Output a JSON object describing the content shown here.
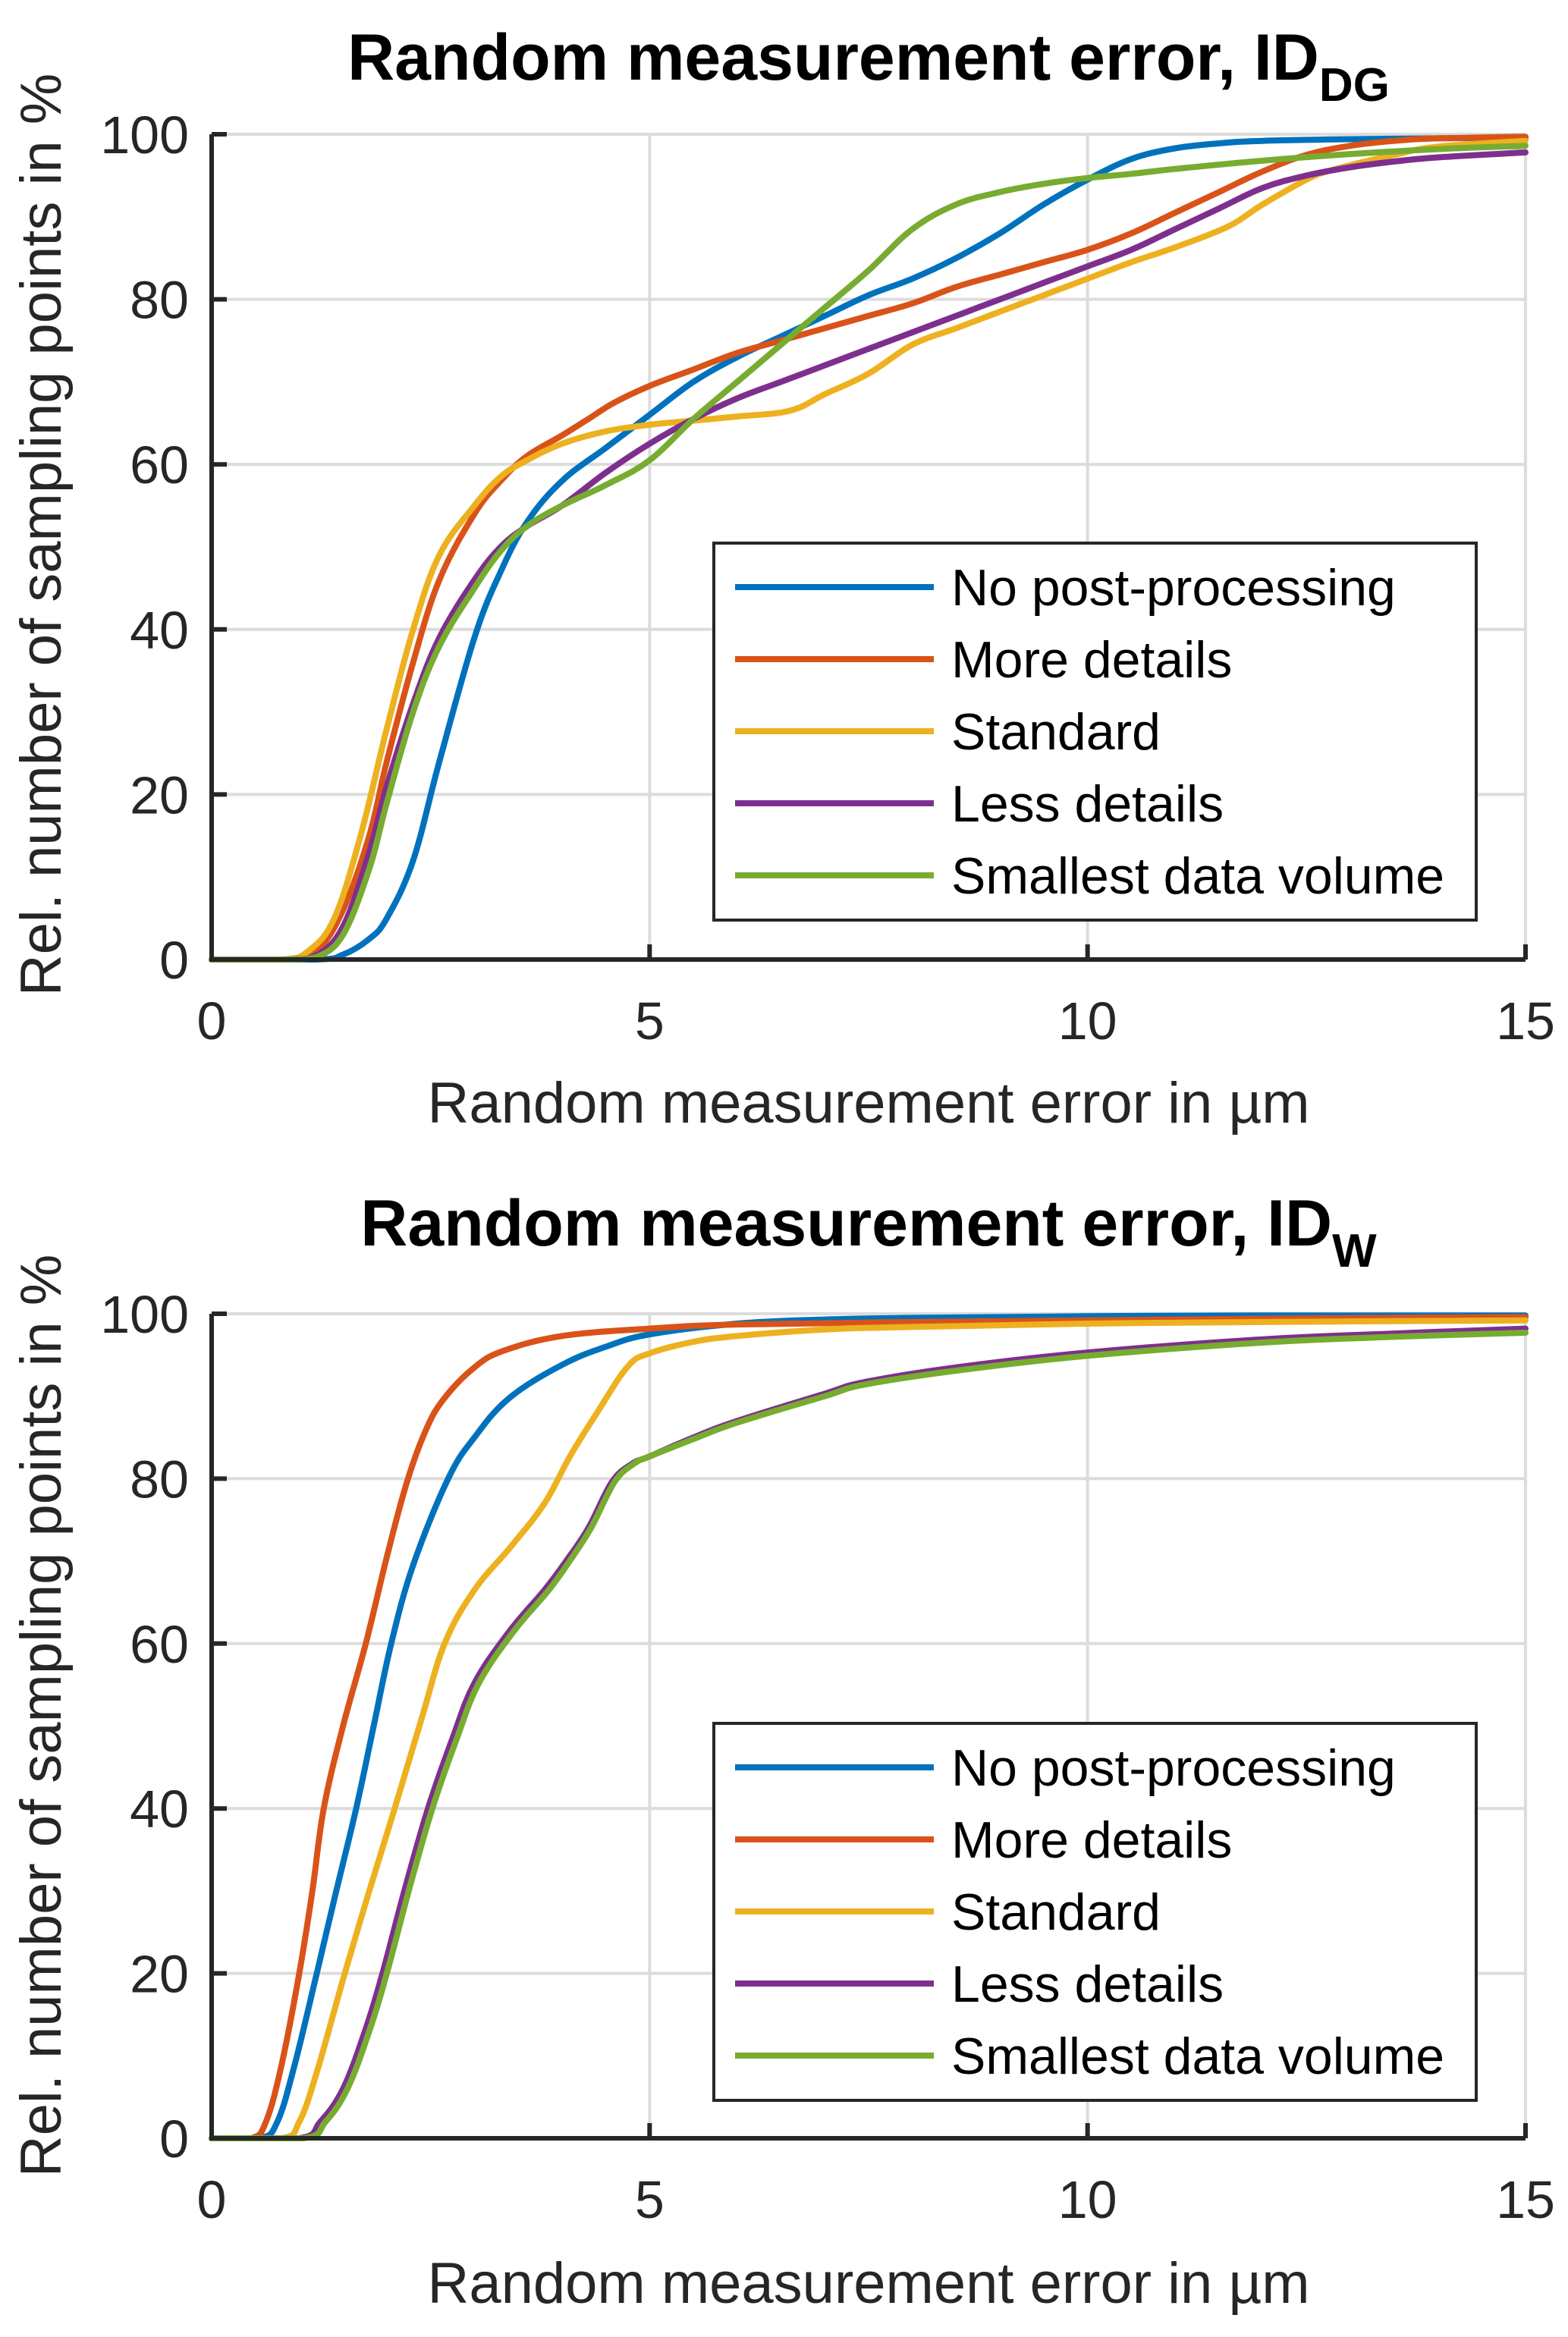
{
  "colors": {
    "no_post_processing": "#0072BD",
    "more_details": "#D95319",
    "standard": "#EDB120",
    "less_details": "#7E2F8E",
    "smallest_data_volume": "#77AC30",
    "axis": "#262626",
    "grid": "#dcdcdc"
  },
  "chart_data": [
    {
      "type": "line",
      "title": "Random measurement error, ID",
      "title_subscript": "DG",
      "xlabel": "Random measurement error in µm",
      "ylabel": "Rel. number of sampling points in %",
      "xlim": [
        0,
        15
      ],
      "ylim": [
        0,
        100
      ],
      "xticks": [
        "0",
        "5",
        "10",
        "15"
      ],
      "yticks": [
        "0",
        "20",
        "40",
        "60",
        "80",
        "100"
      ],
      "xtick_values": [
        0,
        5,
        10,
        15
      ],
      "ytick_values": [
        0,
        20,
        40,
        60,
        80,
        100
      ],
      "grid": true,
      "legend_position": "lower-right",
      "series": [
        {
          "name": "No post-processing",
          "color_key": "no_post_processing",
          "x": [
            0,
            1.2,
            1.5,
            1.8,
            2.0,
            2.3,
            2.6,
            3.0,
            3.3,
            3.6,
            4.0,
            4.5,
            5.0,
            5.5,
            6.0,
            6.5,
            7.0,
            7.5,
            8.0,
            8.5,
            9.0,
            9.5,
            10.0,
            10.5,
            11.0,
            11.5,
            12.0,
            13.0,
            14.0,
            15.0
          ],
          "y": [
            0,
            0,
            0.6,
            2.5,
            5,
            12,
            24,
            39,
            47,
            53,
            58,
            62,
            66,
            70,
            73,
            75.5,
            78,
            80.5,
            82.5,
            85,
            88,
            91.5,
            94.5,
            97,
            98.3,
            98.9,
            99.2,
            99.4,
            99.5,
            99.6
          ]
        },
        {
          "name": "More details",
          "color_key": "more_details",
          "x": [
            0,
            0.9,
            1.2,
            1.5,
            1.8,
            2.0,
            2.3,
            2.6,
            3.0,
            3.3,
            3.6,
            4.0,
            4.3,
            4.6,
            5.0,
            5.5,
            6.0,
            6.5,
            7.0,
            7.5,
            8.0,
            8.5,
            9.0,
            9.5,
            10.0,
            10.5,
            11.0,
            11.5,
            12.0,
            12.5,
            13.0,
            13.5,
            14.0,
            15.0
          ],
          "y": [
            0,
            0,
            1,
            6,
            15,
            24,
            36,
            46,
            54,
            58,
            61,
            63.5,
            65.5,
            67.5,
            69.5,
            71.5,
            73.5,
            75,
            76.5,
            78,
            79.5,
            81.5,
            83,
            84.5,
            86,
            88,
            90.5,
            93,
            95.5,
            97.5,
            98.6,
            99.2,
            99.5,
            99.7
          ]
        },
        {
          "name": "Standard",
          "color_key": "standard",
          "x": [
            0,
            0.8,
            1.1,
            1.4,
            1.7,
            2.0,
            2.3,
            2.6,
            3.0,
            3.3,
            3.6,
            4.0,
            4.5,
            5.0,
            5.5,
            6.0,
            6.6,
            7.0,
            7.5,
            8.0,
            8.5,
            9.0,
            9.5,
            10.0,
            10.5,
            11.0,
            11.6,
            12.0,
            12.5,
            12.8,
            13.5,
            14.0,
            15.0
          ],
          "y": [
            0,
            0,
            1,
            5,
            15,
            28,
            40,
            49,
            55,
            58.5,
            60.5,
            62.5,
            64,
            64.8,
            65.3,
            65.8,
            66.5,
            68.5,
            71,
            74.5,
            76.5,
            78.5,
            80.5,
            82.5,
            84.5,
            86.3,
            88.8,
            91.5,
            94.5,
            95.7,
            97.5,
            98.5,
            99.2
          ]
        },
        {
          "name": "Less details",
          "color_key": "less_details",
          "x": [
            0,
            0.9,
            1.2,
            1.5,
            1.8,
            2.0,
            2.3,
            2.6,
            3.0,
            3.3,
            3.6,
            4.0,
            4.5,
            5.0,
            5.5,
            6.0,
            6.5,
            7.0,
            7.5,
            8.0,
            8.5,
            9.0,
            9.5,
            10.0,
            10.5,
            11.0,
            11.5,
            12.0,
            12.5,
            13.0,
            13.5,
            14.0,
            15.0
          ],
          "y": [
            0,
            0,
            0.5,
            4,
            13,
            21,
            31,
            39,
            46,
            50,
            52.5,
            55,
            59,
            62.5,
            65.5,
            68,
            70,
            72,
            74,
            76,
            78,
            80,
            82,
            84,
            86,
            88.5,
            91,
            93.5,
            95,
            96,
            96.7,
            97.2,
            97.8
          ]
        },
        {
          "name": "Smallest data volume",
          "color_key": "smallest_data_volume",
          "x": [
            0,
            0.9,
            1.2,
            1.5,
            1.8,
            2.0,
            2.3,
            2.6,
            3.0,
            3.3,
            3.6,
            4.0,
            4.5,
            5.0,
            5.5,
            6.0,
            6.5,
            7.0,
            7.5,
            8.0,
            8.5,
            9.0,
            9.5,
            10.0,
            10.5,
            11.0,
            12.0,
            13.0,
            14.0,
            15.0
          ],
          "y": [
            0,
            0,
            0.3,
            3,
            11,
            19,
            30,
            38,
            45,
            49.5,
            52.5,
            55,
            57.5,
            60.5,
            65.5,
            70,
            74.5,
            79,
            83.5,
            88.5,
            91.5,
            93,
            94,
            94.7,
            95.2,
            95.8,
            96.8,
            97.6,
            98.2,
            98.6
          ]
        }
      ]
    },
    {
      "type": "line",
      "title": "Random measurement error, ID",
      "title_subscript": "W",
      "xlabel": "Random measurement error in µm",
      "ylabel": "Rel. number of sampling points in %",
      "xlim": [
        0,
        15
      ],
      "ylim": [
        0,
        100
      ],
      "xticks": [
        "0",
        "5",
        "10",
        "15"
      ],
      "yticks": [
        "0",
        "20",
        "40",
        "60",
        "80",
        "100"
      ],
      "xtick_values": [
        0,
        5,
        10,
        15
      ],
      "ytick_values": [
        0,
        20,
        40,
        60,
        80,
        100
      ],
      "grid": true,
      "legend_position": "lower-right",
      "series": [
        {
          "name": "No post-processing",
          "color_key": "no_post_processing",
          "x": [
            0,
            0.55,
            0.75,
            0.95,
            1.2,
            1.4,
            1.65,
            1.85,
            2.05,
            2.3,
            2.7,
            3.0,
            3.4,
            4.0,
            4.5,
            5.0,
            6.0,
            7.0,
            8.0,
            10.0,
            12.0,
            15.0
          ],
          "y": [
            0,
            0,
            2,
            9,
            20,
            29,
            40,
            50,
            60,
            69.5,
            80,
            85,
            89.8,
            93.8,
            96,
            97.5,
            98.8,
            99.3,
            99.5,
            99.7,
            99.8,
            99.8
          ]
        },
        {
          "name": "More details",
          "color_key": "more_details",
          "x": [
            0,
            0.45,
            0.62,
            0.8,
            1.0,
            1.15,
            1.28,
            1.5,
            1.76,
            2.0,
            2.23,
            2.45,
            2.66,
            3.0,
            3.33,
            4.0,
            5.0,
            6.0,
            8.0,
            10.0,
            12.0,
            15.0
          ],
          "y": [
            0,
            0,
            2,
            9,
            20,
            30,
            40,
            50,
            60,
            70.5,
            79.6,
            86,
            89.8,
            93.5,
            95.5,
            97.3,
            98.2,
            98.7,
            99.0,
            99.2,
            99.4,
            99.6
          ]
        },
        {
          "name": "Standard",
          "color_key": "standard",
          "x": [
            0,
            0.8,
            1.0,
            1.2,
            1.52,
            1.8,
            2.09,
            2.4,
            2.66,
            3.0,
            3.42,
            3.8,
            4.09,
            4.4,
            4.75,
            5.0,
            5.5,
            6.0,
            7.0,
            8.0,
            10.0,
            12.0,
            15.0
          ],
          "y": [
            0,
            0,
            2,
            8,
            20,
            30,
            40,
            51,
            60,
            66.5,
            71.8,
            77,
            82.7,
            88,
            93.6,
            95.2,
            96.6,
            97.3,
            98.1,
            98.4,
            98.8,
            99.0,
            99.2
          ]
        },
        {
          "name": "Less details",
          "color_key": "less_details",
          "x": [
            0,
            1.0,
            1.24,
            1.5,
            1.75,
            1.95,
            2.2,
            2.47,
            2.75,
            3.0,
            3.4,
            3.8,
            4.04,
            4.3,
            4.57,
            4.8,
            5.0,
            5.5,
            6.0,
            7.0,
            7.45,
            8.5,
            10.0,
            12.0,
            13.5,
            15.0
          ],
          "y": [
            0,
            0,
            2,
            6,
            13,
            20,
            30,
            40,
            48.5,
            55.2,
            61.5,
            66.5,
            69.9,
            74,
            79.6,
            81.8,
            82.7,
            85,
            87,
            90.3,
            91.7,
            93.5,
            95.3,
            96.9,
            97.6,
            98.2
          ]
        },
        {
          "name": "Smallest data volume",
          "color_key": "smallest_data_volume",
          "x": [
            0,
            1.05,
            1.3,
            1.55,
            1.8,
            2.0,
            2.25,
            2.52,
            2.8,
            3.05,
            3.45,
            3.85,
            4.08,
            4.33,
            4.6,
            4.82,
            5.0,
            5.5,
            6.0,
            7.0,
            7.45,
            8.5,
            10.0,
            12.0,
            13.5,
            15.0
          ],
          "y": [
            0,
            0,
            2,
            6,
            13,
            20,
            30,
            40,
            48.5,
            55.2,
            61.5,
            66.5,
            69.9,
            74,
            79.6,
            81.8,
            82.7,
            84.8,
            86.8,
            90.0,
            91.4,
            93.1,
            94.9,
            96.5,
            97.2,
            97.7
          ]
        }
      ]
    }
  ]
}
